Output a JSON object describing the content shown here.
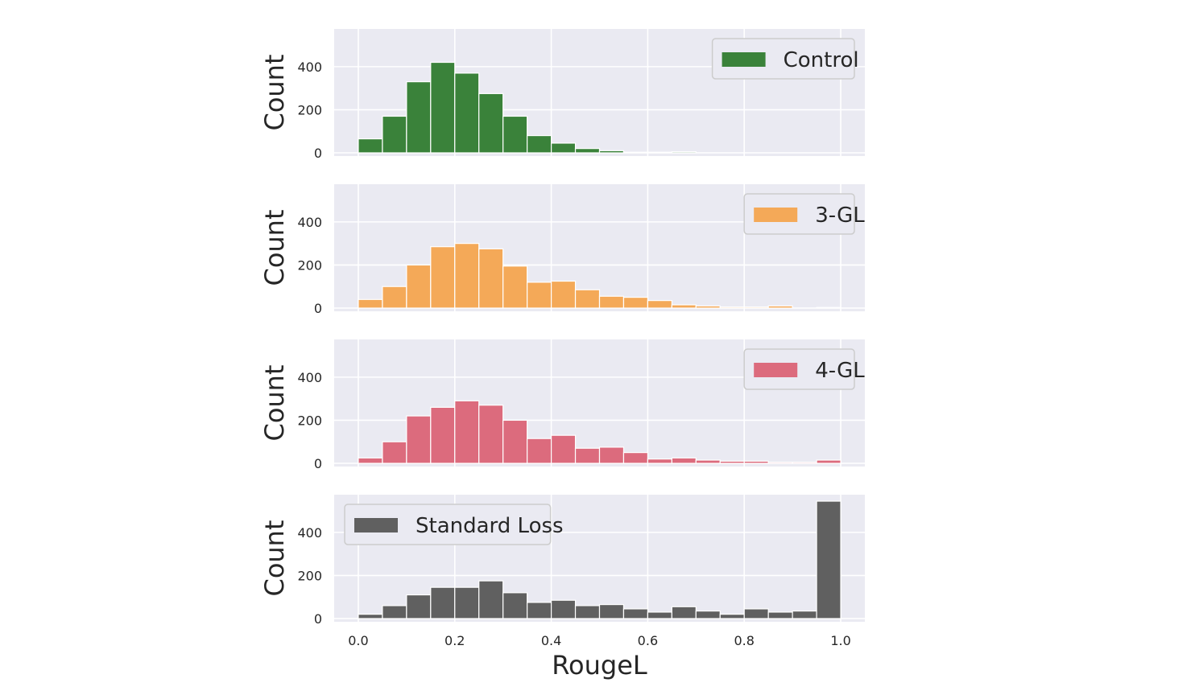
{
  "chart_data": [
    {
      "type": "bar",
      "name": "Control",
      "legend": "Control",
      "legend_position": "top-right",
      "color": "#3a823a",
      "ylabel": "Count",
      "xlabel": "RougeL",
      "xlim": [
        -0.05,
        1.05
      ],
      "ylim": [
        0,
        575
      ],
      "xticks": [
        "0.0",
        "0.2",
        "0.4",
        "0.6",
        "0.8",
        "1.0"
      ],
      "yticks": [
        "0",
        "200",
        "400"
      ],
      "bin_edges": [
        0.0,
        0.05,
        0.1,
        0.15,
        0.2,
        0.25,
        0.3,
        0.35,
        0.4,
        0.45,
        0.5,
        0.55,
        0.6,
        0.65,
        0.7,
        0.75,
        0.8,
        0.85,
        0.9,
        0.95,
        1.0
      ],
      "values": [
        65,
        170,
        330,
        420,
        370,
        275,
        170,
        80,
        45,
        20,
        10,
        3,
        3,
        5,
        0,
        0,
        0,
        0,
        0,
        0
      ]
    },
    {
      "type": "bar",
      "name": "3-GL",
      "legend": "3-GL",
      "legend_position": "top-right",
      "color": "#f4a958",
      "ylabel": "Count",
      "xlabel": "RougeL",
      "xlim": [
        -0.05,
        1.05
      ],
      "ylim": [
        0,
        575
      ],
      "xticks": [
        "0.0",
        "0.2",
        "0.4",
        "0.6",
        "0.8",
        "1.0"
      ],
      "yticks": [
        "0",
        "200",
        "400"
      ],
      "bin_edges": [
        0.0,
        0.05,
        0.1,
        0.15,
        0.2,
        0.25,
        0.3,
        0.35,
        0.4,
        0.45,
        0.5,
        0.55,
        0.6,
        0.65,
        0.7,
        0.75,
        0.8,
        0.85,
        0.9,
        0.95,
        1.0
      ],
      "values": [
        40,
        100,
        200,
        285,
        300,
        275,
        195,
        120,
        125,
        85,
        55,
        50,
        35,
        15,
        10,
        5,
        5,
        10,
        0,
        3
      ]
    },
    {
      "type": "bar",
      "name": "4-GL",
      "legend": "4-GL",
      "legend_position": "top-right",
      "color": "#dc6b7d",
      "ylabel": "Count",
      "xlabel": "RougeL",
      "xlim": [
        -0.05,
        1.05
      ],
      "ylim": [
        0,
        575
      ],
      "xticks": [
        "0.0",
        "0.2",
        "0.4",
        "0.6",
        "0.8",
        "1.0"
      ],
      "yticks": [
        "0",
        "200",
        "400"
      ],
      "bin_edges": [
        0.0,
        0.05,
        0.1,
        0.15,
        0.2,
        0.25,
        0.3,
        0.35,
        0.4,
        0.45,
        0.5,
        0.55,
        0.6,
        0.65,
        0.7,
        0.75,
        0.8,
        0.85,
        0.9,
        0.95,
        1.0
      ],
      "values": [
        25,
        100,
        220,
        260,
        290,
        270,
        200,
        115,
        130,
        70,
        75,
        50,
        20,
        25,
        15,
        10,
        10,
        5,
        5,
        15
      ]
    },
    {
      "type": "bar",
      "name": "Standard Loss",
      "legend": "Standard Loss",
      "legend_position": "top-left",
      "color": "#606060",
      "ylabel": "Count",
      "xlabel": "RougeL",
      "xlim": [
        -0.05,
        1.05
      ],
      "ylim": [
        0,
        575
      ],
      "xticks": [
        "0.0",
        "0.2",
        "0.4",
        "0.6",
        "0.8",
        "1.0"
      ],
      "yticks": [
        "0",
        "200",
        "400"
      ],
      "bin_edges": [
        0.0,
        0.05,
        0.1,
        0.15,
        0.2,
        0.25,
        0.3,
        0.35,
        0.4,
        0.45,
        0.5,
        0.55,
        0.6,
        0.65,
        0.7,
        0.75,
        0.8,
        0.85,
        0.9,
        0.95,
        1.0
      ],
      "values": [
        20,
        60,
        110,
        145,
        145,
        175,
        120,
        75,
        85,
        60,
        65,
        45,
        30,
        55,
        35,
        20,
        45,
        30,
        35,
        545
      ]
    }
  ],
  "figure": {
    "xlabel": "RougeL",
    "background": "#eaeaf2",
    "grid_color": "#ffffff"
  }
}
